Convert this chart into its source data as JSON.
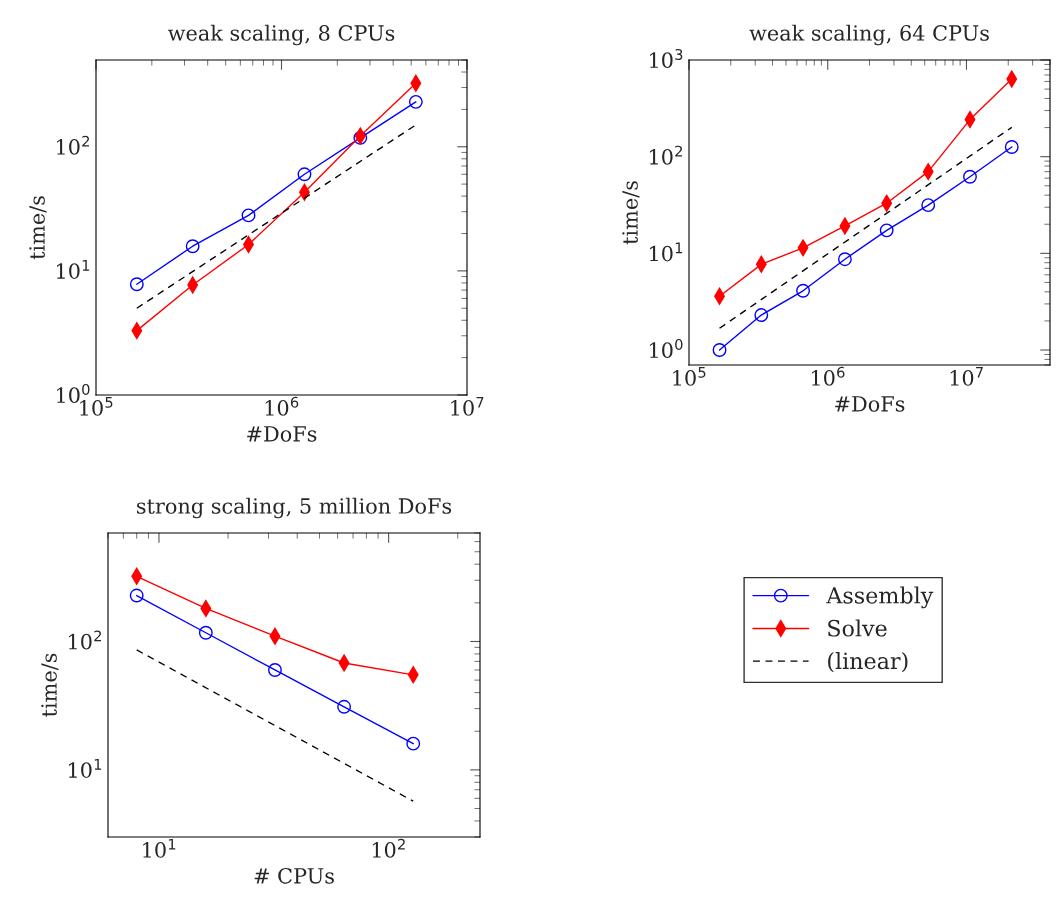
{
  "chart_data": [
    {
      "type": "line",
      "title": "weak scaling, 8 CPUs",
      "xlabel": "#DoFs",
      "ylabel": "time/s",
      "log": "xy",
      "grid": false,
      "xlim": [
        100000,
        10000000
      ],
      "ylim": [
        1,
        500
      ],
      "xticks": [
        {
          "value": 100000,
          "label": "10$^{5}$"
        },
        {
          "value": 1000000,
          "label": "10$^{6}$"
        },
        {
          "value": 10000000,
          "label": "10$^{7}$"
        }
      ],
      "yticks": [
        {
          "value": 1,
          "label": "10$^{0}$"
        },
        {
          "value": 10,
          "label": "10$^{1}$"
        },
        {
          "value": 100,
          "label": "10$^{2}$"
        }
      ],
      "series": [
        {
          "color": "#0000ff",
          "marker": "circle",
          "line_style": "solid",
          "x": [
            166000,
            332000,
            664000,
            1330000,
            2660000,
            5300000
          ],
          "values": [
            7.8,
            15.8,
            28,
            60,
            118,
            230
          ]
        },
        {
          "color": "#ff0000",
          "marker": "diamond",
          "line_style": "solid",
          "x": [
            166000,
            332000,
            664000,
            1330000,
            2660000,
            5300000
          ],
          "values": [
            3.3,
            7.7,
            16.3,
            43,
            122,
            325
          ]
        },
        {
          "color": "#000000",
          "marker": "none",
          "line_style": "dashed",
          "x": [
            166000,
            5300000
          ],
          "values": [
            5,
            150
          ]
        }
      ]
    },
    {
      "type": "line",
      "title": "weak scaling, 64 CPUs",
      "xlabel": "#DoFs",
      "ylabel": "time/s",
      "log": "xy",
      "grid": false,
      "xlim": [
        100000,
        40000000
      ],
      "ylim": [
        0.7,
        1000
      ],
      "xticks": [
        {
          "value": 100000,
          "label": "10$^{5}$"
        },
        {
          "value": 1000000,
          "label": "10$^{6}$"
        },
        {
          "value": 10000000,
          "label": "10$^{7}$"
        }
      ],
      "yticks": [
        {
          "value": 1,
          "label": "10$^{0}$"
        },
        {
          "value": 10,
          "label": "10$^{1}$"
        },
        {
          "value": 100,
          "label": "10$^{2}$"
        },
        {
          "value": 1000,
          "label": "10$^{3}$"
        }
      ],
      "series": [
        {
          "color": "#0000ff",
          "marker": "circle",
          "line_style": "solid",
          "x": [
            166000,
            332000,
            664000,
            1330000,
            2660000,
            5300000,
            10600000,
            21200000
          ],
          "values": [
            1.0,
            2.3,
            4.1,
            8.7,
            17.3,
            31.5,
            62,
            126
          ]
        },
        {
          "color": "#ff0000",
          "marker": "diamond",
          "line_style": "solid",
          "x": [
            166000,
            332000,
            664000,
            1330000,
            2660000,
            5300000,
            10600000,
            21200000
          ],
          "values": [
            3.6,
            7.7,
            11.4,
            19.2,
            33,
            70,
            242,
            635
          ]
        },
        {
          "color": "#000000",
          "marker": "none",
          "line_style": "dashed",
          "x": [
            166000,
            21200000
          ],
          "values": [
            1.68,
            201
          ]
        }
      ]
    },
    {
      "type": "line",
      "title": "strong scaling, 5 million DoFs",
      "xlabel": "# CPUs",
      "ylabel": "time/s",
      "log": "xy",
      "grid": false,
      "legend": "right",
      "xlim": [
        6,
        250
      ],
      "ylim": [
        3,
        700
      ],
      "xticks": [
        {
          "value": 10,
          "label": "10$^{1}$"
        },
        {
          "value": 100,
          "label": "10$^{2}$"
        }
      ],
      "yticks": [
        {
          "value": 10,
          "label": "10$^{1}$"
        },
        {
          "value": 100,
          "label": "10$^{2}$"
        }
      ],
      "series": [
        {
          "name": "Assembly",
          "color": "#0000ff",
          "marker": "circle",
          "line_style": "solid",
          "x": [
            8,
            16,
            32,
            64,
            128
          ],
          "values": [
            228,
            117,
            60,
            31,
            16
          ]
        },
        {
          "name": "Solve",
          "color": "#ff0000",
          "marker": "diamond",
          "line_style": "solid",
          "x": [
            8,
            16,
            32,
            64,
            128
          ],
          "values": [
            322,
            181,
            110,
            68,
            55
          ]
        },
        {
          "name": "(linear)",
          "color": "#000000",
          "marker": "none",
          "line_style": "dashed",
          "x": [
            8,
            128
          ],
          "values": [
            86,
            5.7
          ]
        }
      ]
    }
  ]
}
